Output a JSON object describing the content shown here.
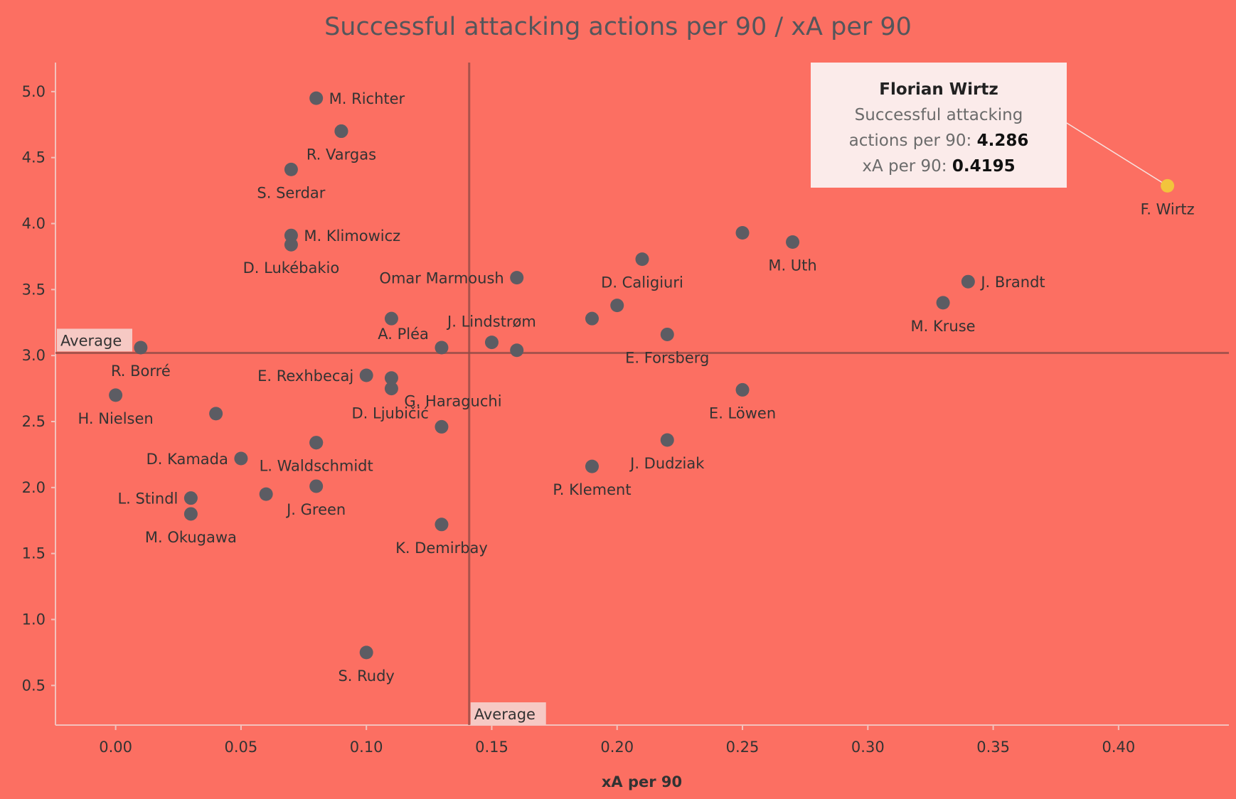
{
  "chart_data": {
    "type": "scatter",
    "title": "Successful attacking actions per 90 / xA per 90",
    "xlabel": "xA per 90",
    "ylabel": "",
    "xlim": [
      -0.024,
      0.444
    ],
    "ylim": [
      0.2,
      5.22
    ],
    "x_ticks": [
      "0.00",
      "0.05",
      "0.10",
      "0.15",
      "0.20",
      "0.25",
      "0.30",
      "0.35",
      "0.40"
    ],
    "y_ticks": [
      "0.5",
      "1.0",
      "1.5",
      "2.0",
      "2.5",
      "3.0",
      "3.5",
      "4.0",
      "4.5",
      "5.0"
    ],
    "averages": {
      "x": 0.141,
      "y": 3.02,
      "label": "Average"
    },
    "grid": false,
    "point_color": "#5c5c63",
    "highlight_color": "#f2c43c",
    "points": [
      {
        "label": "M. Richter",
        "x": 0.08,
        "y": 4.95,
        "lpos": "right"
      },
      {
        "label": "",
        "x": 0.09,
        "y": 4.7
      },
      {
        "label": "R. Vargas",
        "x": 0.09,
        "y": 4.7,
        "lpos": "below"
      },
      {
        "label": "S. Serdar",
        "x": 0.07,
        "y": 4.41,
        "lpos": "below"
      },
      {
        "label": "M. Klimowicz",
        "x": 0.07,
        "y": 3.91,
        "lpos": "right"
      },
      {
        "label": "D. Lukébakio",
        "x": 0.07,
        "y": 3.84,
        "lpos": "below"
      },
      {
        "label": "Omar Marmoush",
        "x": 0.16,
        "y": 3.59,
        "lpos": "left"
      },
      {
        "label": "",
        "x": 0.11,
        "y": 3.28
      },
      {
        "label": "A. Pléa",
        "x": 0.13,
        "y": 3.06,
        "lpos": "left-up"
      },
      {
        "label": "J. Lindstrøm",
        "x": 0.15,
        "y": 3.1,
        "lpos": "above"
      },
      {
        "label": "",
        "x": 0.16,
        "y": 3.04
      },
      {
        "label": "R. Borré",
        "x": 0.01,
        "y": 3.06,
        "lpos": "below"
      },
      {
        "label": "H. Nielsen",
        "x": 0.0,
        "y": 2.7,
        "lpos": "below"
      },
      {
        "label": "E. Rexhbecaj",
        "x": 0.1,
        "y": 2.85,
        "lpos": "left"
      },
      {
        "label": "G. Haraguchi",
        "x": 0.11,
        "y": 2.83,
        "lpos": "right-down"
      },
      {
        "label": "",
        "x": 0.11,
        "y": 2.75
      },
      {
        "label": "D. Ljubičić",
        "x": 0.13,
        "y": 2.46,
        "lpos": "left-up"
      },
      {
        "label": "",
        "x": 0.04,
        "y": 2.56
      },
      {
        "label": "",
        "x": 0.08,
        "y": 2.34
      },
      {
        "label": "D. Kamada",
        "x": 0.05,
        "y": 2.22,
        "lpos": "left"
      },
      {
        "label": "L. Waldschmidt",
        "x": 0.08,
        "y": 2.34,
        "lpos": "below"
      },
      {
        "label": "L. Stindl",
        "x": 0.03,
        "y": 1.92,
        "lpos": "left"
      },
      {
        "label": "",
        "x": 0.06,
        "y": 1.95
      },
      {
        "label": "J. Green",
        "x": 0.08,
        "y": 2.01,
        "lpos": "below"
      },
      {
        "label": "M. Okugawa",
        "x": 0.03,
        "y": 1.8,
        "lpos": "below"
      },
      {
        "label": "K. Demirbay",
        "x": 0.13,
        "y": 1.72,
        "lpos": "below"
      },
      {
        "label": "S. Rudy",
        "x": 0.1,
        "y": 0.75,
        "lpos": "below"
      },
      {
        "label": "M. Uth",
        "x": 0.27,
        "y": 3.86,
        "lpos": "below"
      },
      {
        "label": "",
        "x": 0.25,
        "y": 3.93
      },
      {
        "label": "D. Caligiuri",
        "x": 0.21,
        "y": 3.73,
        "lpos": "below"
      },
      {
        "label": "",
        "x": 0.2,
        "y": 3.38
      },
      {
        "label": "",
        "x": 0.19,
        "y": 3.28
      },
      {
        "label": "E. Forsberg",
        "x": 0.22,
        "y": 3.16,
        "lpos": "below"
      },
      {
        "label": "J. Brandt",
        "x": 0.34,
        "y": 3.56,
        "lpos": "right"
      },
      {
        "label": "M. Kruse",
        "x": 0.33,
        "y": 3.4,
        "lpos": "below"
      },
      {
        "label": "E. Löwen",
        "x": 0.25,
        "y": 2.74,
        "lpos": "below"
      },
      {
        "label": "J. Dudziak",
        "x": 0.22,
        "y": 2.36,
        "lpos": "below"
      },
      {
        "label": "P. Klement",
        "x": 0.19,
        "y": 2.16,
        "lpos": "below"
      },
      {
        "label": "F. Wirtz",
        "x": 0.4195,
        "y": 4.286,
        "lpos": "below",
        "highlight": true
      }
    ],
    "tooltip": {
      "name": "Florian Wirtz",
      "line1": "Successful attacking",
      "line2_prefix": "actions per 90: ",
      "line2_value": "4.286",
      "line3_prefix": "xA per 90: ",
      "line3_value": "0.4195"
    }
  }
}
